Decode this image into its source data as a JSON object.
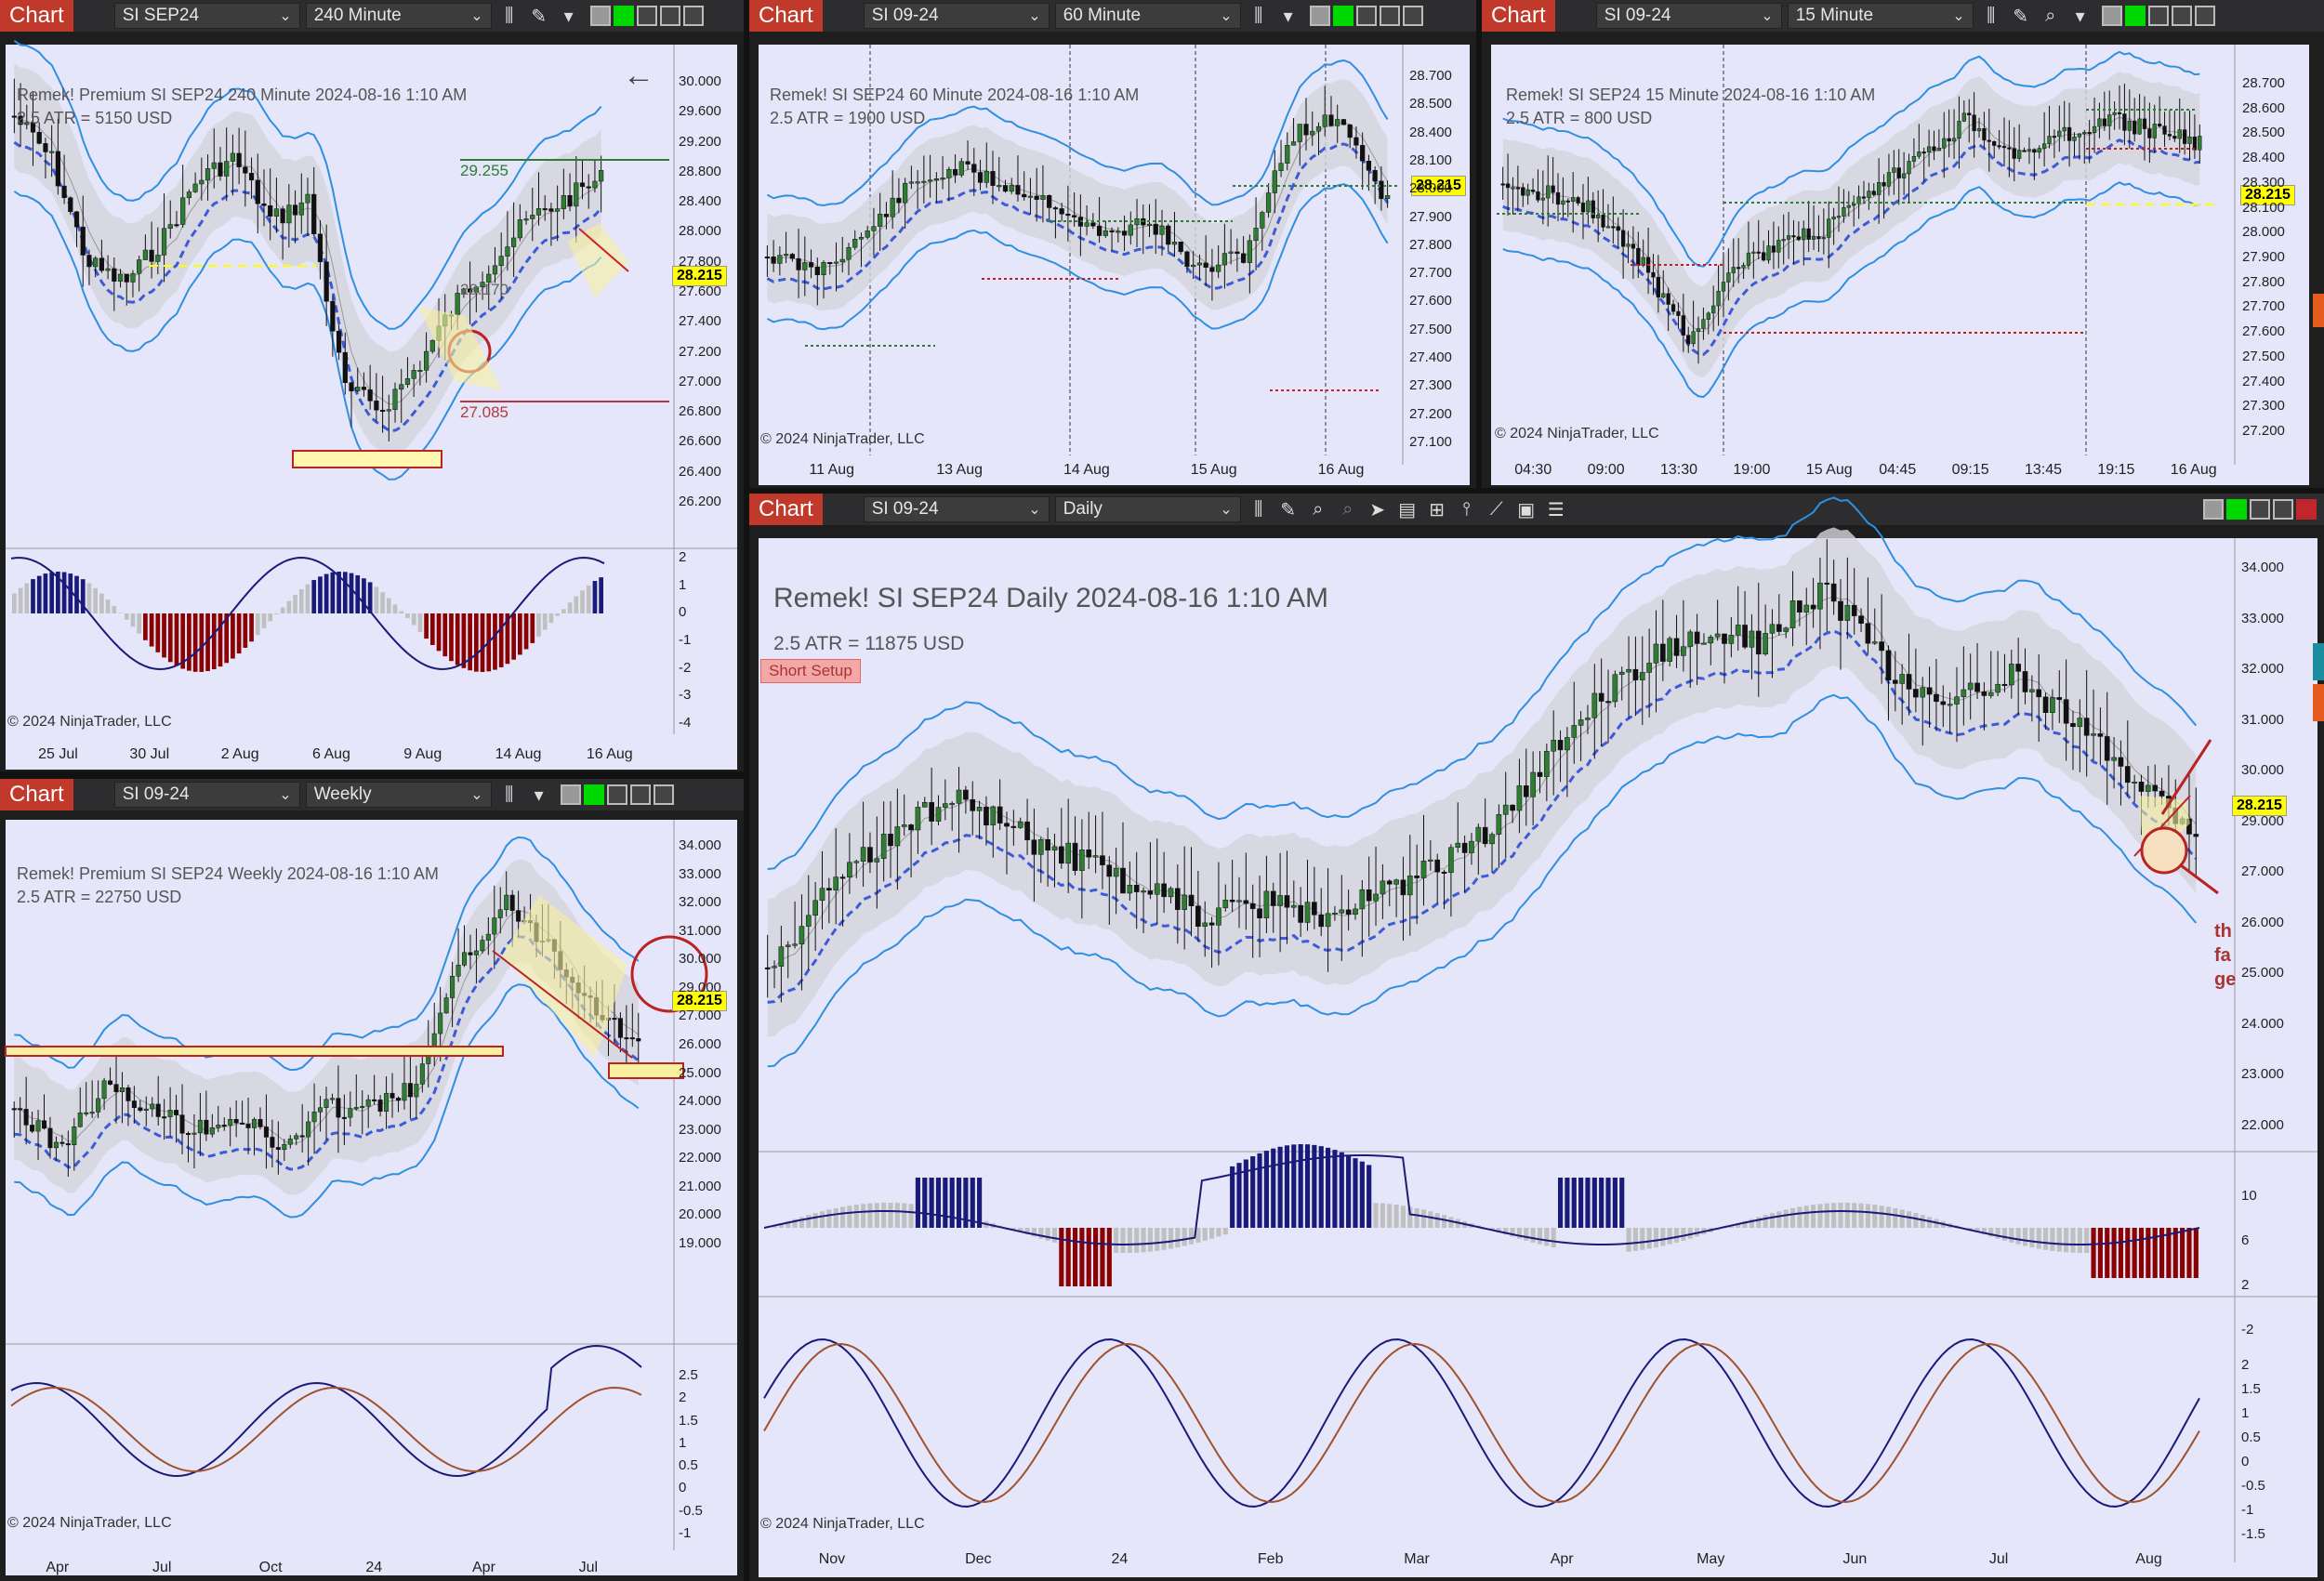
{
  "colors": {
    "accent": "#c0392b",
    "plot_bg": "#e6e6fa",
    "band": "#3399ff",
    "yellow": "#ffff00"
  },
  "common": {
    "chart_label": "Chart",
    "copyright": "© 2024 NinjaTrader, LLC",
    "price_tag": "28.215"
  },
  "charts": [
    {
      "id": "c240",
      "instrument": "SI SEP24",
      "interval": "240 Minute",
      "title": "Remek!  Premium  SI SEP24  240 Minute  2024-08-16 1:10 AM",
      "atr": "2.5 ATR = 5150 USD",
      "price_axis": [
        "30.000",
        "29.600",
        "29.200",
        "28.800",
        "28.400",
        "28.000",
        "27.800",
        "27.600",
        "27.400",
        "27.200",
        "27.000",
        "26.800",
        "26.600",
        "26.400",
        "26.200"
      ],
      "osc_axis": [
        "2",
        "1",
        "0",
        "-1",
        "-2",
        "-3",
        "-4"
      ],
      "dates": [
        "25 Jul",
        "30 Jul",
        "2 Aug",
        "6 Aug",
        "9 Aug",
        "14 Aug",
        "16 Aug"
      ],
      "levels": {
        "upper": "29.255",
        "lower": "27.085",
        "mid": "28.170"
      }
    },
    {
      "id": "c60",
      "instrument": "SI 09-24",
      "interval": "60 Minute",
      "title": "Remek!  SI SEP24  60 Minute  2024-08-16 1:10 AM",
      "atr": "2.5 ATR = 1900 USD",
      "price_axis": [
        "28.700",
        "28.500",
        "28.400",
        "28.100",
        "28.000",
        "27.900",
        "27.800",
        "27.700",
        "27.600",
        "27.500",
        "27.400",
        "27.300",
        "27.200",
        "27.100"
      ],
      "dates": [
        "11 Aug",
        "13 Aug",
        "14 Aug",
        "15 Aug",
        "16 Aug"
      ]
    },
    {
      "id": "c15",
      "instrument": "SI 09-24",
      "interval": "15 Minute",
      "title": "Remek!  SI SEP24  15 Minute  2024-08-16 1:10 AM",
      "atr": "2.5 ATR = 800 USD",
      "price_axis": [
        "28.700",
        "28.600",
        "28.500",
        "28.400",
        "28.300",
        "28.100",
        "28.000",
        "27.900",
        "27.800",
        "27.700",
        "27.600",
        "27.500",
        "27.400",
        "27.300",
        "27.200"
      ],
      "dates": [
        "04:30",
        "09:00",
        "13:30",
        "19:00",
        "15 Aug",
        "04:45",
        "09:15",
        "13:45",
        "19:15",
        "16 Aug"
      ]
    },
    {
      "id": "cW",
      "instrument": "SI 09-24",
      "interval": "Weekly",
      "title": "Remek!  Premium  SI SEP24  Weekly  2024-08-16 1:10 AM",
      "atr": "2.5 ATR = 22750 USD",
      "price_axis": [
        "34.000",
        "33.000",
        "32.000",
        "31.000",
        "30.000",
        "29.000",
        "27.000",
        "26.000",
        "25.000",
        "24.000",
        "23.000",
        "22.000",
        "21.000",
        "20.000",
        "19.000"
      ],
      "osc_axis": [
        "2.5",
        "2",
        "1.5",
        "1",
        "0.5",
        "0",
        "-0.5",
        "-1"
      ],
      "dates": [
        "Apr",
        "Jul",
        "Oct",
        "24",
        "Apr",
        "Jul"
      ]
    },
    {
      "id": "cD",
      "instrument": "SI 09-24",
      "interval": "Daily",
      "title": "Remek!  SI SEP24  Daily  2024-08-16 1:10 AM",
      "atr": "2.5 ATR = 11875 USD",
      "badge": "Short Setup",
      "price_axis": [
        "34.000",
        "33.000",
        "32.000",
        "31.000",
        "30.000",
        "29.000",
        "27.000",
        "26.000",
        "25.000",
        "24.000",
        "23.000",
        "22.000"
      ],
      "osc_axis": [
        "10",
        "6",
        "2",
        "-2"
      ],
      "osc2_axis": [
        "2",
        "1.5",
        "1",
        "0.5",
        "0",
        "-0.5",
        "-1",
        "-1.5"
      ],
      "dates": [
        "Nov",
        "Dec",
        "24",
        "Feb",
        "Mar",
        "Apr",
        "May",
        "Jun",
        "Jul",
        "Aug"
      ],
      "note": [
        "th",
        "fa",
        "ge"
      ]
    }
  ]
}
